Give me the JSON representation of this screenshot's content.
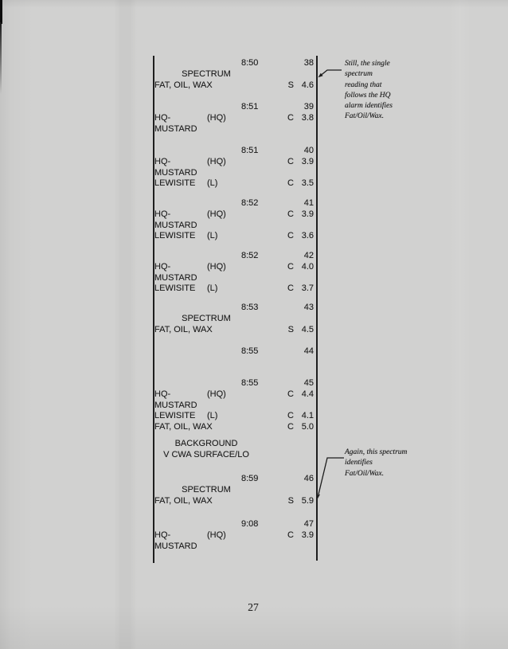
{
  "page_number": "27",
  "colors": {
    "paper": "#d1d1d0",
    "ink": "#1e1e1e"
  },
  "log_entries": [
    {
      "time": "8:50",
      "reading": "38",
      "rows": [
        {
          "center": "SPECTRUM"
        },
        {
          "name": "FAT, OIL, WAX",
          "code": "S",
          "value": "4.6"
        }
      ]
    },
    {
      "time": "8:51",
      "reading": "39",
      "rows": [
        {
          "name": "HQ-",
          "abbr": "(HQ)",
          "code": "C",
          "value": "3.8"
        },
        {
          "name": "MUSTARD"
        }
      ]
    },
    {
      "time": "8:51",
      "reading": "40",
      "rows": [
        {
          "name": "HQ-",
          "abbr": "(HQ)",
          "code": "C",
          "value": "3.9"
        },
        {
          "name": "MUSTARD"
        },
        {
          "name": "LEWISITE",
          "abbr": "(L)",
          "code": "C",
          "value": "3.5"
        }
      ]
    },
    {
      "time": "8:52",
      "reading": "41",
      "rows": [
        {
          "name": "HQ-",
          "abbr": "(HQ)",
          "code": "C",
          "value": "3.9"
        },
        {
          "name": "MUSTARD"
        },
        {
          "name": "LEWISITE",
          "abbr": "(L)",
          "code": "C",
          "value": "3.6"
        }
      ]
    },
    {
      "time": "8:52",
      "reading": "42",
      "rows": [
        {
          "name": "HQ-",
          "abbr": "(HQ)",
          "code": "C",
          "value": "4.0"
        },
        {
          "name": "MUSTARD"
        },
        {
          "name": "LEWISITE",
          "abbr": "(L)",
          "code": "C",
          "value": "3.7"
        }
      ]
    },
    {
      "time": "8:53",
      "reading": "43",
      "rows": [
        {
          "center": "SPECTRUM"
        },
        {
          "name": "FAT, OIL, WAX",
          "code": "S",
          "value": "4.5"
        }
      ]
    },
    {
      "time": "8:55",
      "reading": "44",
      "rows": []
    },
    {
      "time": "8:55",
      "reading": "45",
      "rows": [
        {
          "name": "HQ-",
          "abbr": "(HQ)",
          "code": "C",
          "value": "4.4"
        },
        {
          "name": "MUSTARD"
        },
        {
          "name": "LEWISITE",
          "abbr": "(L)",
          "code": "C",
          "value": "4.1"
        },
        {
          "name": "FAT, OIL, WAX",
          "code": "C",
          "value": "5.0"
        }
      ]
    },
    {
      "rows": [
        {
          "center": "BACKGROUND"
        },
        {
          "center": "V CWA SURFACE/LO"
        }
      ]
    },
    {
      "time": "8:59",
      "reading": "46",
      "rows": [
        {
          "center": "SPECTRUM"
        },
        {
          "name": "FAT, OIL, WAX",
          "code": "S",
          "value": "5.9"
        }
      ]
    },
    {
      "time": "9:08",
      "reading": "47",
      "rows": [
        {
          "name": "HQ-",
          "abbr": "(HQ)",
          "code": "C",
          "value": "3.9"
        },
        {
          "name": "MUSTARD"
        }
      ]
    }
  ],
  "annotations": [
    {
      "lines": [
        "Still, the single",
        "spectrum",
        "reading that",
        "follows the HQ",
        "alarm identifies",
        "Fat/Oil/Wax."
      ]
    },
    {
      "lines": [
        "Again, this spectrum",
        "identifies",
        "Fat/Oil/Wax."
      ]
    }
  ]
}
